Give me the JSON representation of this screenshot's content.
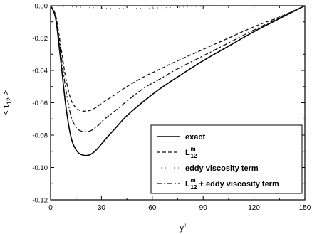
{
  "chart_data": {
    "type": "line",
    "xlabel": "y",
    "xlabel_sup": "+",
    "ylabel": "< τ",
    "ylabel_sub": "12",
    "ylabel_close": " >",
    "xlim": [
      0,
      150
    ],
    "ylim": [
      -0.12,
      0.0
    ],
    "x_ticks": [
      0,
      30,
      60,
      90,
      120,
      150
    ],
    "y_ticks": [
      0.0,
      -0.02,
      -0.04,
      -0.06,
      -0.08,
      -0.1,
      -0.12
    ],
    "x_tick_labels": [
      "0",
      "30",
      "60",
      "90",
      "120",
      "150"
    ],
    "y_tick_labels": [
      "0.00",
      "-0.02",
      "-0.04",
      "-0.06",
      "-0.08",
      "-0.10",
      "-0.12"
    ],
    "grid": false,
    "legend_position": "bottom-right",
    "series": [
      {
        "name": "exact",
        "style": "solid",
        "x": [
          0,
          3,
          6,
          9,
          12,
          15,
          18,
          22,
          25,
          28,
          32,
          38,
          45,
          55,
          65,
          75,
          90,
          105,
          120,
          135,
          150
        ],
        "y": [
          0.0,
          -0.008,
          -0.034,
          -0.062,
          -0.081,
          -0.089,
          -0.092,
          -0.0925,
          -0.091,
          -0.088,
          -0.083,
          -0.076,
          -0.068,
          -0.059,
          -0.051,
          -0.044,
          -0.034,
          -0.025,
          -0.016,
          -0.008,
          0.0
        ]
      },
      {
        "name": "L",
        "name_sub": "12",
        "name_sup": "m",
        "style": "dashed",
        "x": [
          0,
          3,
          6,
          9,
          12,
          15,
          18,
          22,
          25,
          28,
          32,
          38,
          45,
          55,
          65,
          75,
          90,
          105,
          120,
          135,
          150
        ],
        "y": [
          0.0,
          -0.006,
          -0.025,
          -0.045,
          -0.058,
          -0.063,
          -0.065,
          -0.065,
          -0.064,
          -0.062,
          -0.059,
          -0.055,
          -0.05,
          -0.044,
          -0.039,
          -0.034,
          -0.027,
          -0.02,
          -0.013,
          -0.007,
          0.0
        ]
      },
      {
        "name": "eddy viscosity term",
        "style": "dotted",
        "x": [
          0,
          10,
          20,
          30,
          40,
          50,
          60,
          70,
          80,
          90,
          100
        ],
        "y": [
          0.0,
          -0.0005,
          -0.001,
          -0.0014,
          -0.0016,
          -0.0016,
          -0.0014,
          -0.0011,
          -0.0007,
          -0.0004,
          -0.0001
        ]
      },
      {
        "name": "L",
        "name_sub": "12",
        "name_sup": "m",
        "name_suffix": " + eddy viscosity term",
        "style": "dashdot",
        "x": [
          0,
          3,
          6,
          9,
          12,
          15,
          18,
          22,
          25,
          28,
          32,
          38,
          45,
          55,
          65,
          75,
          90,
          105,
          120,
          135,
          150
        ],
        "y": [
          0.0,
          -0.007,
          -0.029,
          -0.052,
          -0.068,
          -0.075,
          -0.0775,
          -0.0778,
          -0.0765,
          -0.074,
          -0.07,
          -0.065,
          -0.059,
          -0.051,
          -0.045,
          -0.039,
          -0.031,
          -0.023,
          -0.015,
          -0.0075,
          0.0
        ]
      }
    ]
  }
}
